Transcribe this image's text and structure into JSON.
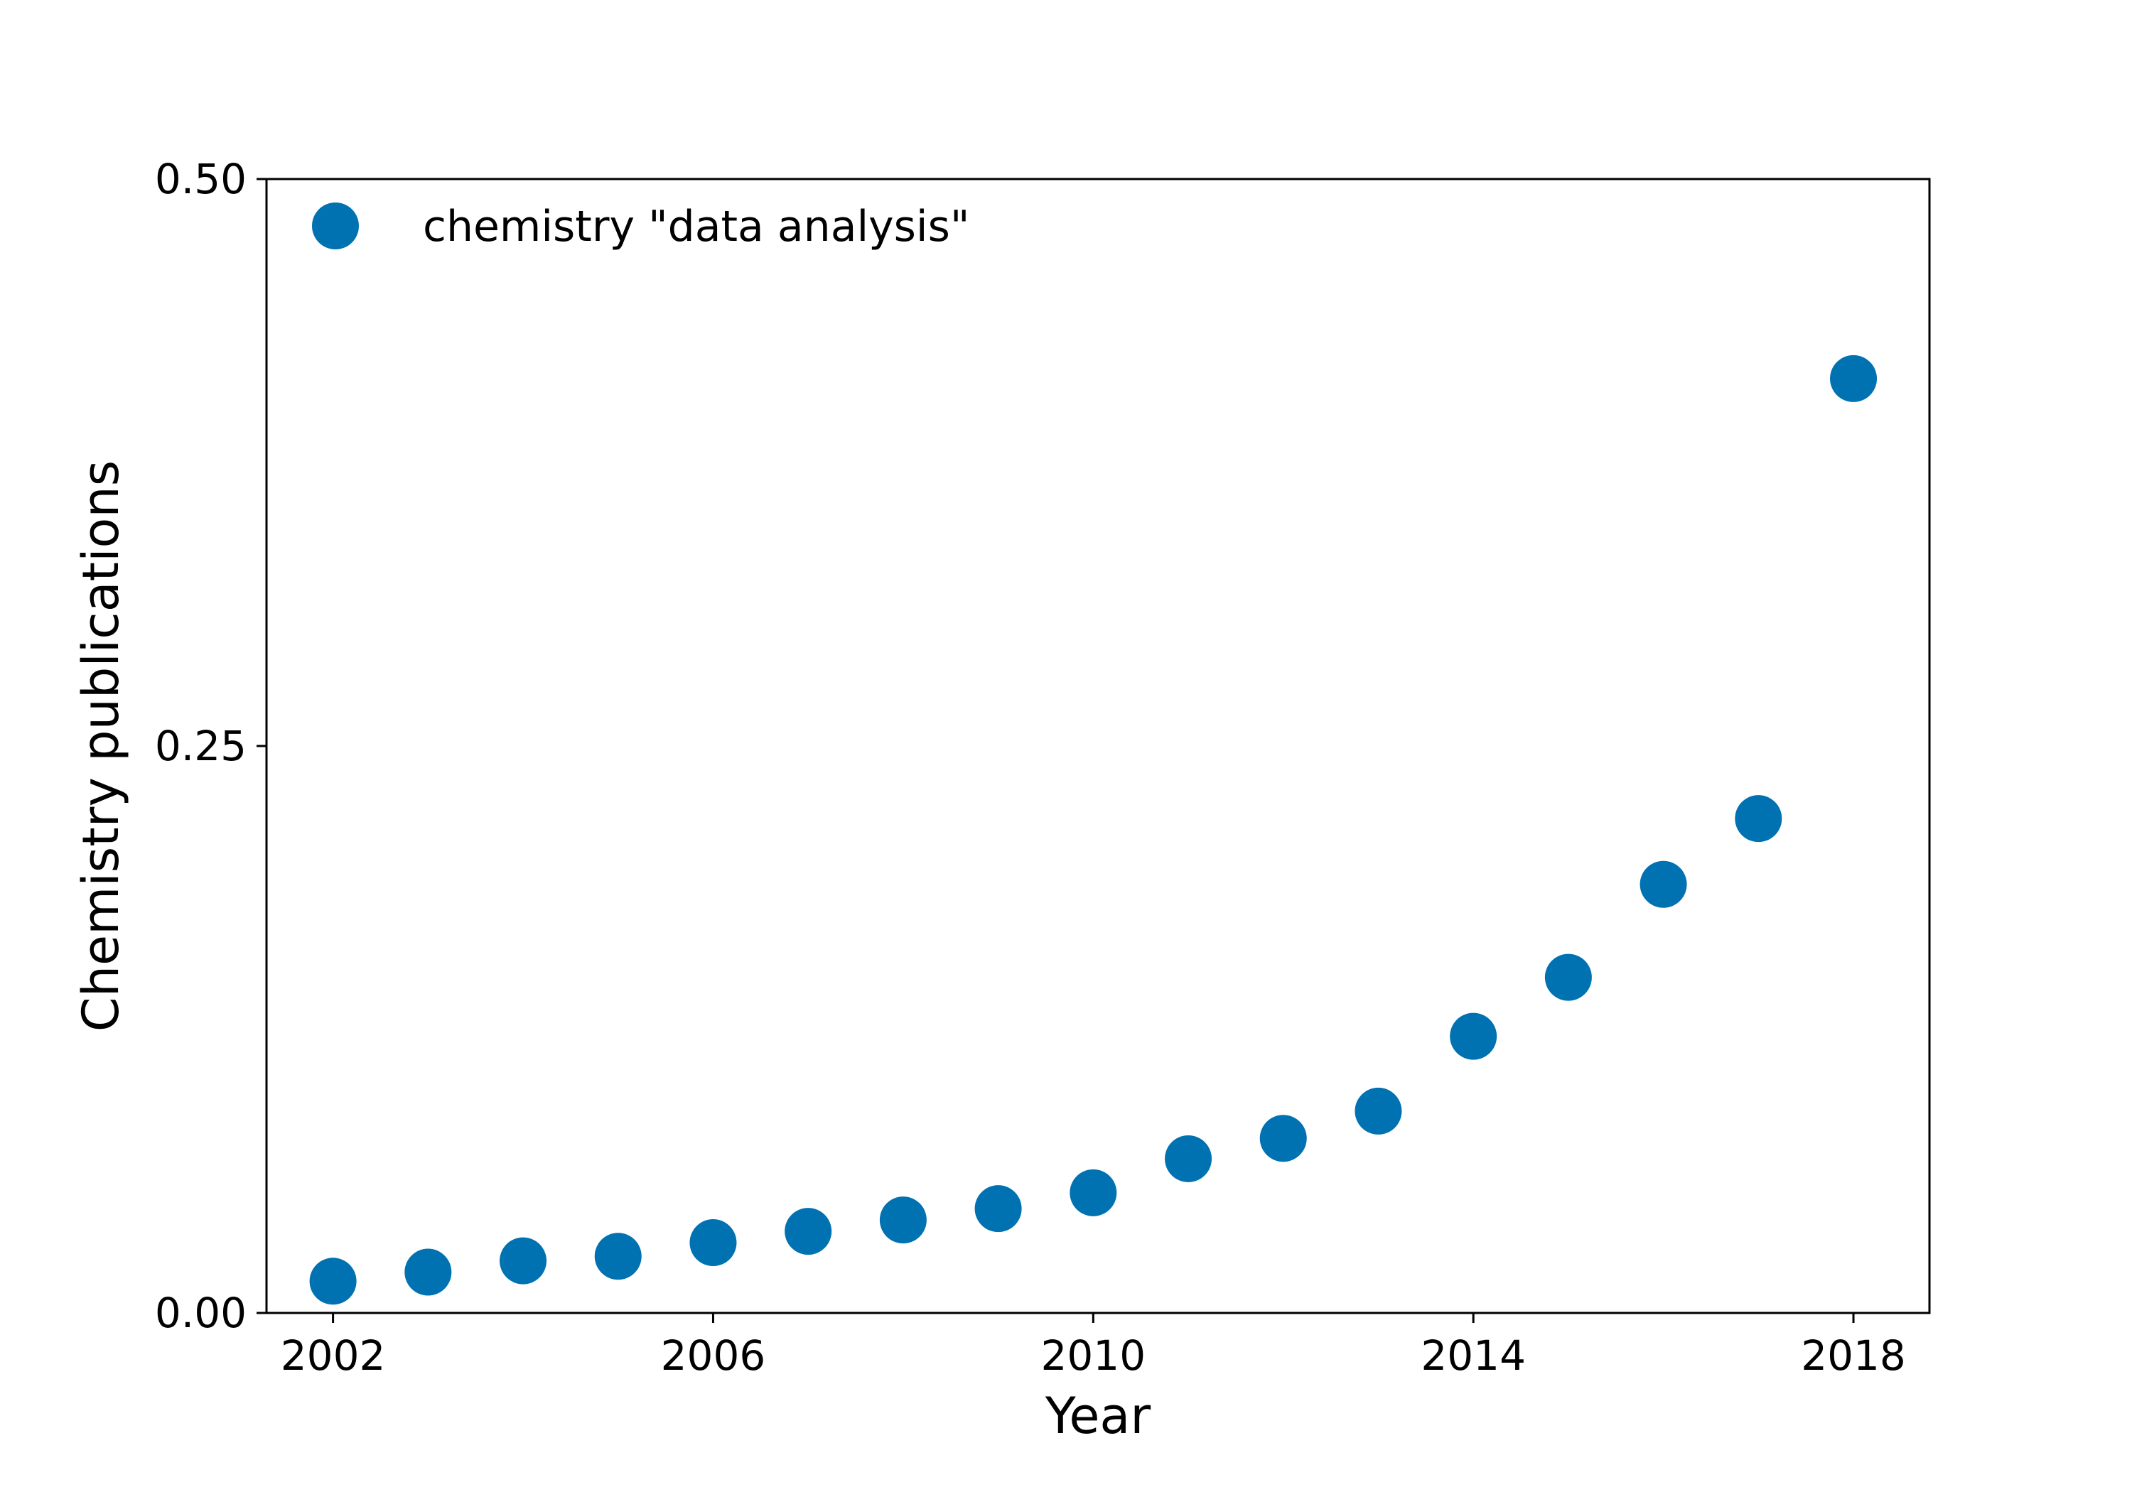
{
  "chart_data": {
    "type": "scatter",
    "title": "",
    "xlabel": "Year",
    "ylabel": "Chemistry publications",
    "xlim": [
      2001.3,
      2018.8
    ],
    "ylim": [
      0,
      0.5
    ],
    "xticks": [
      "2002",
      "2006",
      "2010",
      "2014",
      "2018"
    ],
    "yticks": [
      "0.00",
      "0.25",
      "0.50"
    ],
    "grid": false,
    "legend_position": "top-left",
    "series": [
      {
        "name": "chemistry \"data analysis\"",
        "color": "#0072b2",
        "marker": "circle",
        "x": [
          2002,
          2003,
          2004,
          2005,
          2006,
          2007,
          2008,
          2009,
          2010,
          2011,
          2012,
          2013,
          2014,
          2015,
          2016,
          2017,
          2018
        ],
        "y": [
          0.014,
          0.018,
          0.023,
          0.025,
          0.031,
          0.036,
          0.041,
          0.046,
          0.053,
          0.068,
          0.077,
          0.089,
          0.122,
          0.148,
          0.189,
          0.218,
          0.412
        ]
      }
    ]
  }
}
